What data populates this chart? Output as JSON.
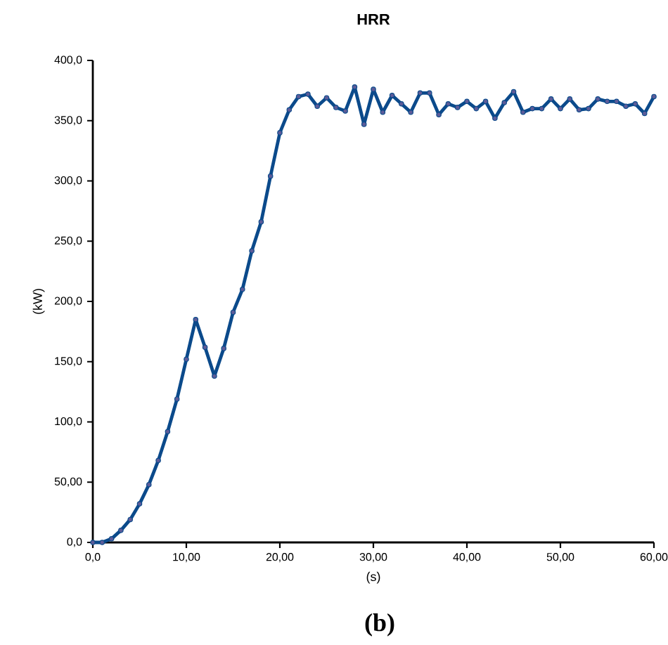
{
  "chart_data": {
    "type": "line",
    "title": "HRR",
    "xlabel": "(s)",
    "ylabel": "(kW)",
    "annotations": [
      "(b)"
    ],
    "x": [
      0,
      1,
      2,
      3,
      4,
      5,
      6,
      7,
      8,
      9,
      10,
      11,
      12,
      13,
      14,
      15,
      16,
      17,
      18,
      19,
      20,
      21,
      22,
      23,
      24,
      25,
      26,
      27,
      28,
      29,
      30,
      31,
      32,
      33,
      34,
      35,
      36,
      37,
      38,
      39,
      40,
      41,
      42,
      43,
      44,
      45,
      46,
      47,
      48,
      49,
      50,
      51,
      52,
      53,
      54,
      55,
      56,
      57,
      58,
      59,
      60
    ],
    "series": [
      {
        "color": "#0b4a8b",
        "values": [
          0,
          0,
          3,
          10,
          19,
          32,
          48,
          68,
          92,
          119,
          152,
          185,
          162,
          138,
          161,
          191,
          210,
          242,
          266,
          304,
          340,
          359,
          370,
          372,
          362,
          369,
          361,
          358,
          378,
          347,
          376,
          357,
          371,
          364,
          357,
          373,
          373,
          355,
          364,
          361,
          366,
          360,
          366,
          352,
          365,
          374,
          357,
          360,
          360,
          368,
          360,
          368,
          359,
          360,
          368,
          366,
          366,
          362,
          364,
          356,
          370
        ]
      }
    ],
    "xlim": [
      0,
      60
    ],
    "ylim": [
      0,
      400
    ],
    "xticks": [
      {
        "value": 0,
        "label": "0,0"
      },
      {
        "value": 10,
        "label": "10,00"
      },
      {
        "value": 20,
        "label": "20,00"
      },
      {
        "value": 30,
        "label": "30,00"
      },
      {
        "value": 40,
        "label": "40,00"
      },
      {
        "value": 50,
        "label": "50,00"
      },
      {
        "value": 60,
        "label": "60,00"
      }
    ],
    "yticks": [
      {
        "value": 0,
        "label": "0,0"
      },
      {
        "value": 50,
        "label": "50,00"
      },
      {
        "value": 100,
        "label": "100,0"
      },
      {
        "value": 150,
        "label": "150,0"
      },
      {
        "value": 200,
        "label": "200,0"
      },
      {
        "value": 250,
        "label": "250,0"
      },
      {
        "value": 300,
        "label": "300,0"
      },
      {
        "value": 350,
        "label": "350,0"
      },
      {
        "value": 400,
        "label": "400,0"
      }
    ],
    "marker": "circle",
    "line_style": "solid"
  }
}
